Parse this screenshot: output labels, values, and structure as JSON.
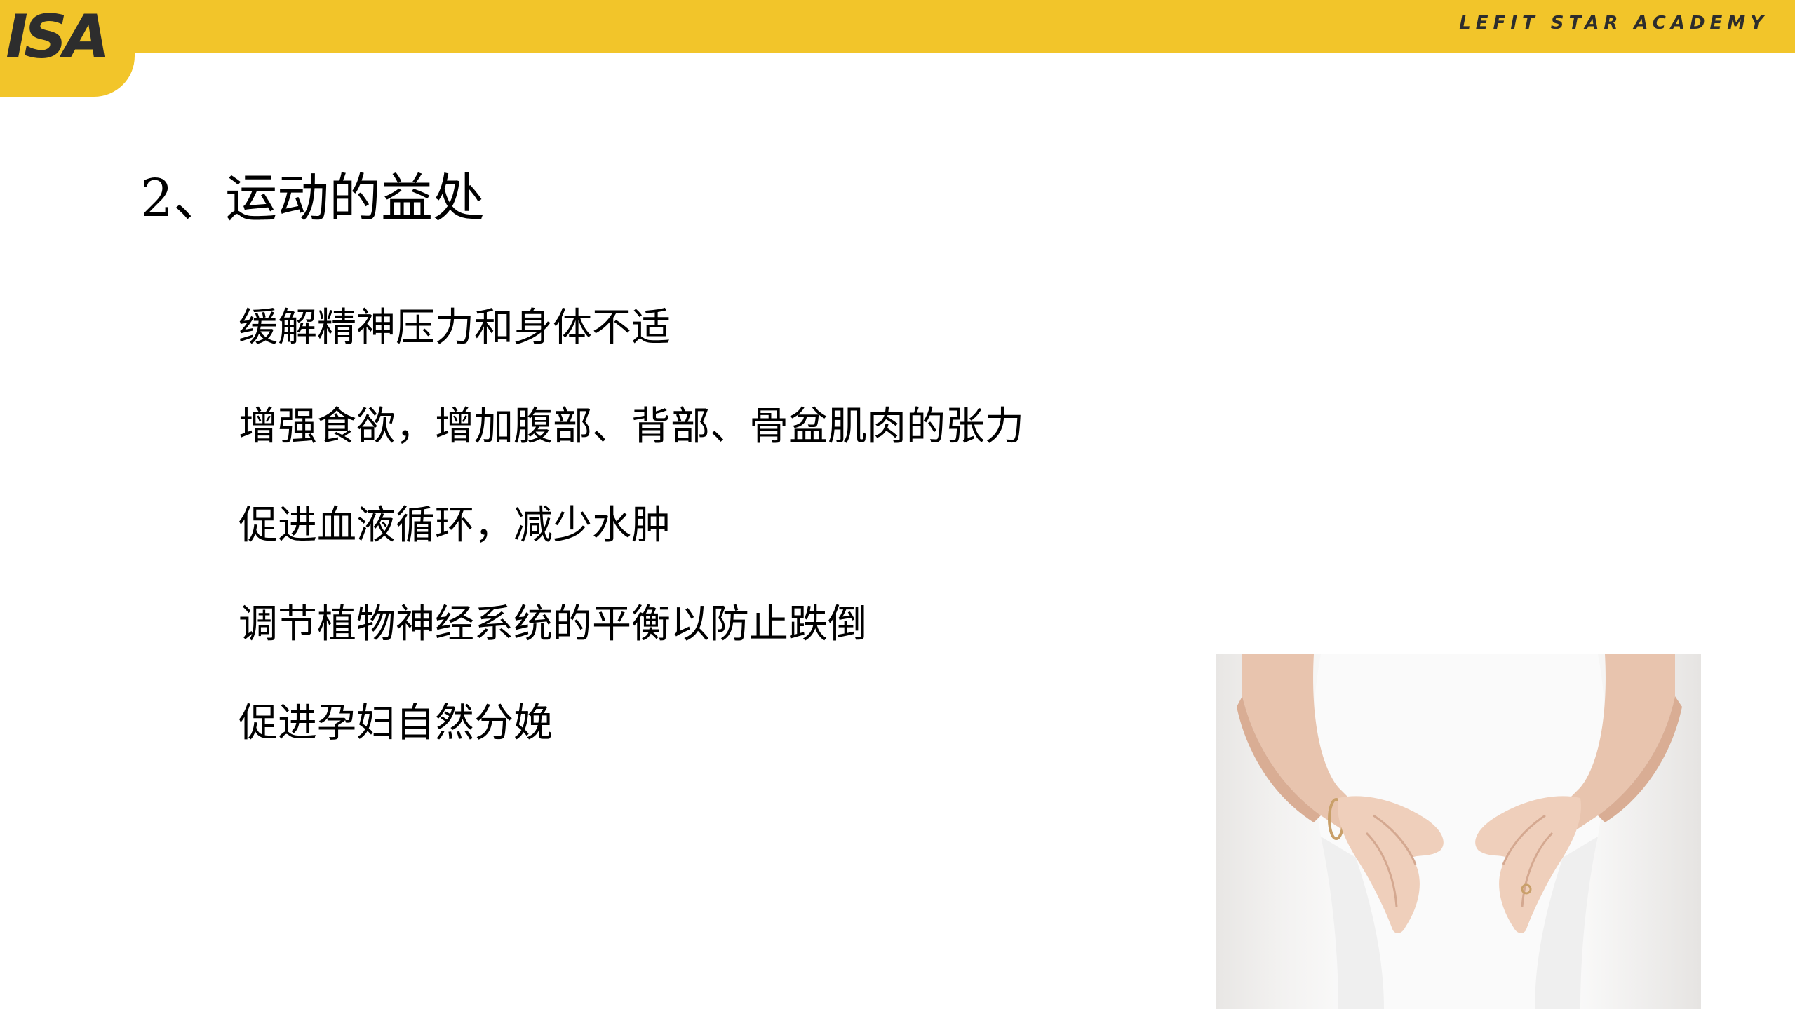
{
  "header": {
    "logo_text": "ISA",
    "brand_name": "LEFIT STAR ACADEMY"
  },
  "slide": {
    "title": "2、运动的益处",
    "bullets": [
      "缓解精神压力和身体不适",
      "增强食欲，增加腹部、背部、骨盆肌肉的张力",
      "促进血液循环，减少水肿",
      "调节植物神经系统的平衡以防止跌倒",
      "促进孕妇自然分娩"
    ]
  },
  "colors": {
    "brand_yellow": "#f2c52a",
    "logo_dark": "#2d2d2d",
    "text": "#000000",
    "background": "#ffffff"
  }
}
